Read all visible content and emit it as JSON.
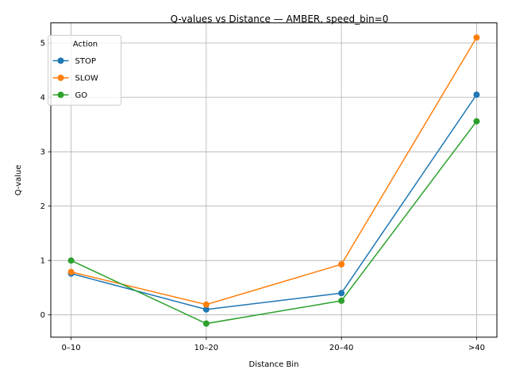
{
  "chart_data": {
    "type": "line",
    "title": "Q-values vs Distance — AMBER, speed_bin=0",
    "xlabel": "Distance Bin",
    "ylabel": "Q-value",
    "categories": [
      "0–10",
      "10–20",
      "20–40",
      ">40"
    ],
    "ylim": [
      -0.41,
      5.37
    ],
    "yticks": [
      0,
      1,
      2,
      3,
      4,
      5
    ],
    "grid": true,
    "legend": {
      "title": "Action",
      "placement": "upper-left"
    },
    "series": [
      {
        "name": "STOP",
        "color": "#1f77b4",
        "values": [
          0.76,
          0.1,
          0.4,
          4.05
        ]
      },
      {
        "name": "SLOW",
        "color": "#ff7f0e",
        "values": [
          0.79,
          0.19,
          0.93,
          5.1
        ]
      },
      {
        "name": "GO",
        "color": "#2ca02c",
        "values": [
          1.0,
          -0.16,
          0.26,
          3.56
        ]
      }
    ]
  }
}
